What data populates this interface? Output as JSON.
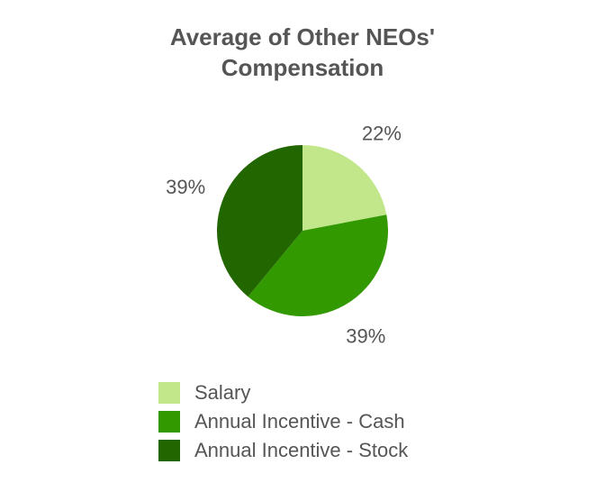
{
  "chart_data": {
    "type": "pie",
    "title": "Average of Other NEOs' Compensation",
    "categories": [
      "Salary",
      "Annual Incentive - Cash",
      "Annual Incentive - Stock"
    ],
    "values": [
      22,
      39,
      39
    ],
    "value_labels": [
      "22%",
      "39%",
      "39%"
    ],
    "colors": [
      "#c2e68a",
      "#339900",
      "#226600"
    ]
  }
}
